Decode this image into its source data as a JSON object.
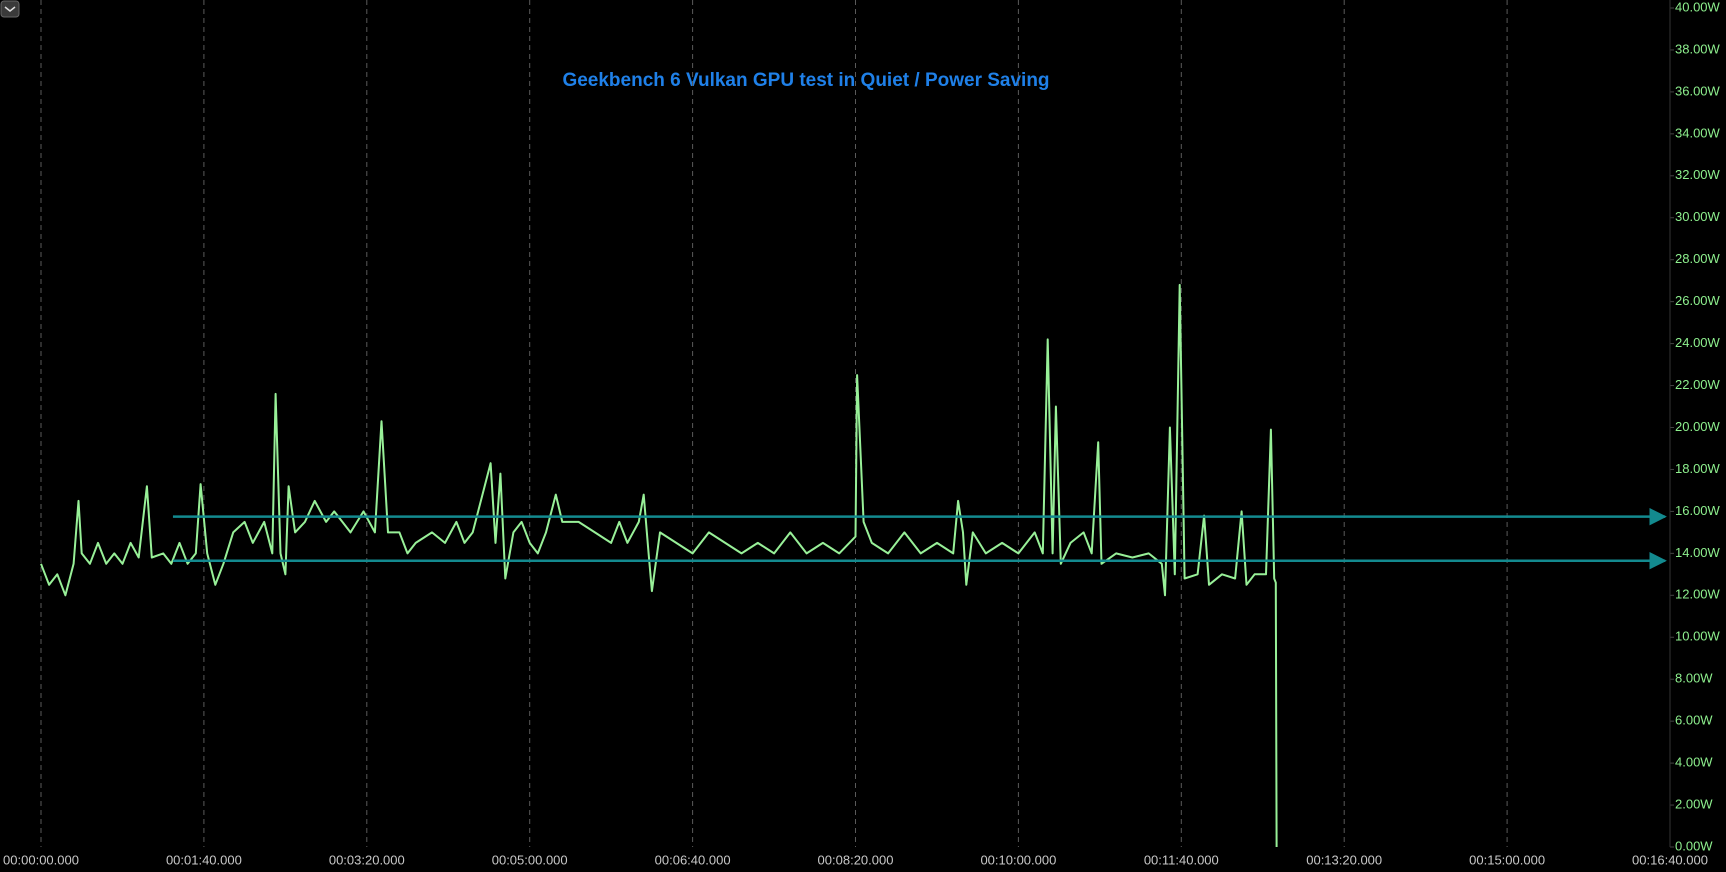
{
  "chart_data": {
    "type": "line",
    "title": "Geekbench 6 Vulkan GPU test in Quiet / Power Saving",
    "xlim": [
      0,
      1000
    ],
    "xticks": [
      {
        "value": 0,
        "label": "00:00:00.000"
      },
      {
        "value": 100,
        "label": "00:01:40.000"
      },
      {
        "value": 200,
        "label": "00:03:20.000"
      },
      {
        "value": 300,
        "label": "00:05:00.000"
      },
      {
        "value": 400,
        "label": "00:06:40.000"
      },
      {
        "value": 500,
        "label": "00:08:20.000"
      },
      {
        "value": 600,
        "label": "00:10:00.000"
      },
      {
        "value": 700,
        "label": "00:11:40.000"
      },
      {
        "value": 800,
        "label": "00:13:20.000"
      },
      {
        "value": 900,
        "label": "00:15:00.000"
      },
      {
        "value": 1000,
        "label": "00:16:40.000"
      }
    ],
    "ylim": [
      0,
      40
    ],
    "yticks": [
      {
        "value": 0,
        "label": "0.00W"
      },
      {
        "value": 2,
        "label": "2.00W"
      },
      {
        "value": 4,
        "label": "4.00W"
      },
      {
        "value": 6,
        "label": "6.00W"
      },
      {
        "value": 8,
        "label": "8.00W"
      },
      {
        "value": 10,
        "label": "10.00W"
      },
      {
        "value": 12,
        "label": "12.00W"
      },
      {
        "value": 14,
        "label": "14.00W"
      },
      {
        "value": 16,
        "label": "16.00W"
      },
      {
        "value": 18,
        "label": "18.00W"
      },
      {
        "value": 20,
        "label": "20.00W"
      },
      {
        "value": 22,
        "label": "22.00W"
      },
      {
        "value": 24,
        "label": "24.00W"
      },
      {
        "value": 26,
        "label": "26.00W"
      },
      {
        "value": 28,
        "label": "28.00W"
      },
      {
        "value": 30,
        "label": "30.00W"
      },
      {
        "value": 32,
        "label": "32.00W"
      },
      {
        "value": 34,
        "label": "34.00W"
      },
      {
        "value": 36,
        "label": "36.00W"
      },
      {
        "value": 38,
        "label": "38.00W"
      },
      {
        "value": 40,
        "label": "40.00W"
      }
    ],
    "grid": true,
    "series": [
      {
        "color": "#98f098",
        "x": [
          0,
          5,
          10,
          15,
          20,
          23,
          25,
          30,
          35,
          40,
          45,
          50,
          55,
          60,
          65,
          68,
          75,
          80,
          85,
          90,
          95,
          98,
          102,
          107,
          112,
          118,
          125,
          130,
          137,
          142,
          144,
          147,
          150,
          152,
          156,
          162,
          168,
          175,
          180,
          185,
          190,
          198,
          205,
          209,
          213,
          220,
          225,
          230,
          240,
          248,
          255,
          260,
          265,
          276,
          279,
          282,
          285,
          290,
          295,
          300,
          305,
          310,
          316,
          320,
          330,
          340,
          350,
          355,
          360,
          367,
          370,
          373,
          375,
          380,
          390,
          400,
          410,
          420,
          430,
          440,
          450,
          460,
          470,
          480,
          490,
          500,
          501,
          505,
          510,
          520,
          530,
          540,
          550,
          560,
          563,
          566,
          568,
          572,
          580,
          590,
          600,
          610,
          615,
          618,
          621,
          623,
          626,
          632,
          640,
          645,
          649,
          651,
          660,
          670,
          680,
          688,
          690,
          693,
          696,
          699,
          702,
          710,
          714,
          717,
          725,
          733,
          737,
          740,
          745,
          752,
          755,
          757,
          758,
          758.5
        ],
        "values": [
          13.5,
          12.5,
          13,
          12,
          13.5,
          16.5,
          14,
          13.5,
          14.5,
          13.5,
          14,
          13.5,
          14.5,
          13.8,
          17.2,
          13.8,
          14,
          13.5,
          14.5,
          13.5,
          14,
          17.3,
          14,
          12.5,
          13.5,
          15,
          15.5,
          14.5,
          15.5,
          14,
          21.6,
          14,
          13,
          17.2,
          15,
          15.5,
          16.5,
          15.5,
          16,
          15.5,
          15,
          16,
          15,
          20.3,
          15,
          15,
          14,
          14.5,
          15,
          14.5,
          15.5,
          14.5,
          15,
          18.3,
          14.5,
          17.8,
          12.8,
          15,
          15.5,
          14.5,
          14,
          15,
          16.8,
          15.5,
          15.5,
          15,
          14.5,
          15.5,
          14.5,
          15.5,
          16.8,
          14,
          12.2,
          15,
          14.5,
          14,
          15,
          14.5,
          14,
          14.5,
          14,
          15,
          14,
          14.5,
          14,
          14.8,
          22.5,
          15.5,
          14.5,
          14,
          15,
          14,
          14.5,
          14,
          16.5,
          15,
          12.5,
          15,
          14,
          14.5,
          14,
          15,
          14,
          24.2,
          14,
          21,
          13.5,
          14.5,
          15,
          14,
          19.3,
          13.5,
          14,
          13.8,
          14,
          13.5,
          12,
          20,
          13,
          26.8,
          12.8,
          13,
          15.8,
          12.5,
          13,
          12.8,
          16,
          12.5,
          13,
          13,
          19.9,
          12.8,
          12.6,
          0
        ]
      }
    ],
    "reference_lines": [
      {
        "value": 15.75,
        "x_start": 81,
        "x_end": 997,
        "color": "#138a8f"
      },
      {
        "value": 13.65,
        "x_start": 81,
        "x_end": 997,
        "color": "#138a8f"
      }
    ]
  }
}
